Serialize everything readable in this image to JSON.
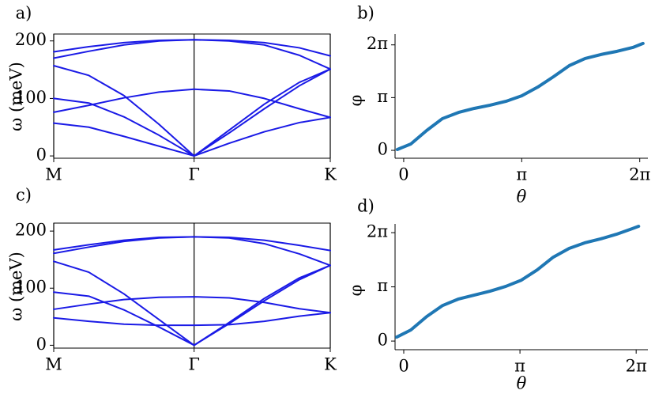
{
  "chart_data": [
    {
      "type": "line",
      "label": "a)",
      "ylabel": "ω (meV)",
      "x": [
        0,
        0.25,
        0.5,
        0.75,
        1,
        1.25,
        1.5,
        1.75,
        1.97
      ],
      "xlim": [
        0,
        1.97
      ],
      "xticks": [
        {
          "value": 0,
          "label": "M"
        },
        {
          "value": 1,
          "label": "Γ"
        },
        {
          "value": 1.97,
          "label": "K"
        }
      ],
      "ylim": [
        -4,
        212
      ],
      "yticks": [
        0,
        100,
        200
      ],
      "xgrid": true,
      "series": [
        {
          "color": "#1a1ae6",
          "values": [
            181,
            190,
            197,
            201,
            202,
            201,
            197,
            188,
            174
          ]
        },
        {
          "color": "#1a1ae6",
          "values": [
            170,
            182,
            193,
            200,
            202,
            200,
            193,
            175,
            151
          ]
        },
        {
          "color": "#1a1ae6",
          "values": [
            76,
            88,
            101,
            111,
            116,
            113,
            100,
            82,
            67
          ]
        },
        {
          "color": "#1a1ae6",
          "values": [
            157,
            140,
            105,
            55,
            0,
            45,
            90,
            128,
            151
          ]
        },
        {
          "color": "#1a1ae6",
          "values": [
            100,
            92,
            68,
            36,
            0,
            40,
            82,
            122,
            151
          ]
        },
        {
          "color": "#1a1ae6",
          "values": [
            57,
            50,
            34,
            17,
            0,
            22,
            42,
            58,
            67
          ]
        }
      ]
    },
    {
      "type": "line",
      "label": "b)",
      "ylabel": "φ",
      "xlabel": "θ",
      "x": [
        -0.17,
        0.19,
        0.61,
        1.03,
        1.46,
        1.88,
        2.3,
        2.72,
        3.14,
        3.57,
        3.99,
        4.41,
        4.83,
        5.25,
        5.68,
        6.1,
        6.37
      ],
      "values": [
        0.05,
        0.38,
        1.18,
        1.89,
        2.26,
        2.5,
        2.69,
        2.92,
        3.25,
        3.77,
        4.39,
        5.05,
        5.47,
        5.71,
        5.9,
        6.13,
        6.37
      ],
      "color": "#1f77b4",
      "xlim": [
        -0.23,
        6.5
      ],
      "xticks": [
        0,
        {
          "value": 3.1416,
          "label": "π"
        },
        {
          "value": 6.2832,
          "label": "2π"
        }
      ],
      "ylim": [
        -0.47,
        6.93
      ],
      "yticks": [
        0,
        {
          "value": 3.1416,
          "label": "π"
        },
        {
          "value": 6.2832,
          "label": "2π"
        }
      ]
    },
    {
      "type": "line",
      "label": "c)",
      "ylabel": "ω (meV)",
      "x": [
        0,
        0.25,
        0.5,
        0.75,
        1,
        1.25,
        1.5,
        1.75,
        1.97
      ],
      "xlim": [
        0,
        1.97
      ],
      "xticks": [
        {
          "value": 0,
          "label": "M"
        },
        {
          "value": 1,
          "label": "Γ"
        },
        {
          "value": 1.97,
          "label": "K"
        }
      ],
      "ylim": [
        -5,
        214
      ],
      "yticks": [
        0,
        100,
        200
      ],
      "xgrid": true,
      "series": [
        {
          "color": "#1a1ae6",
          "values": [
            167,
            176,
            184,
            189,
            190,
            189,
            184,
            175,
            166
          ]
        },
        {
          "color": "#1a1ae6",
          "values": [
            161,
            172,
            182,
            188,
            190,
            188,
            178,
            160,
            140
          ]
        },
        {
          "color": "#1a1ae6",
          "values": [
            63,
            72,
            80,
            84,
            85,
            83,
            75,
            64,
            57
          ]
        },
        {
          "color": "#1a1ae6",
          "values": [
            147,
            128,
            90,
            45,
            0,
            40,
            82,
            118,
            140
          ]
        },
        {
          "color": "#1a1ae6",
          "values": [
            93,
            86,
            62,
            32,
            0,
            38,
            78,
            115,
            140
          ]
        },
        {
          "color": "#1a1ae6",
          "values": [
            48,
            42,
            37,
            35,
            35,
            36,
            42,
            51,
            57
          ]
        }
      ]
    },
    {
      "type": "line",
      "label": "d)",
      "ylabel": "φ",
      "xlabel": "θ",
      "x": [
        -0.19,
        0.19,
        0.62,
        1.05,
        1.47,
        1.9,
        2.33,
        2.76,
        3.18,
        3.61,
        4.04,
        4.47,
        4.89,
        5.32,
        5.75,
        6.17,
        6.35
      ],
      "values": [
        0.23,
        0.64,
        1.42,
        2.06,
        2.43,
        2.66,
        2.89,
        3.17,
        3.53,
        4.13,
        4.86,
        5.37,
        5.69,
        5.92,
        6.19,
        6.51,
        6.65
      ],
      "color": "#1f77b4",
      "xlim": [
        -0.235,
        6.6
      ],
      "xticks": [
        0,
        {
          "value": 3.1416,
          "label": "π"
        },
        {
          "value": 6.2832,
          "label": "2π"
        }
      ],
      "ylim": [
        -0.5,
        6.79
      ],
      "yticks": [
        0,
        {
          "value": 3.1416,
          "label": "π"
        },
        {
          "value": 6.2832,
          "label": "2π"
        }
      ]
    }
  ]
}
